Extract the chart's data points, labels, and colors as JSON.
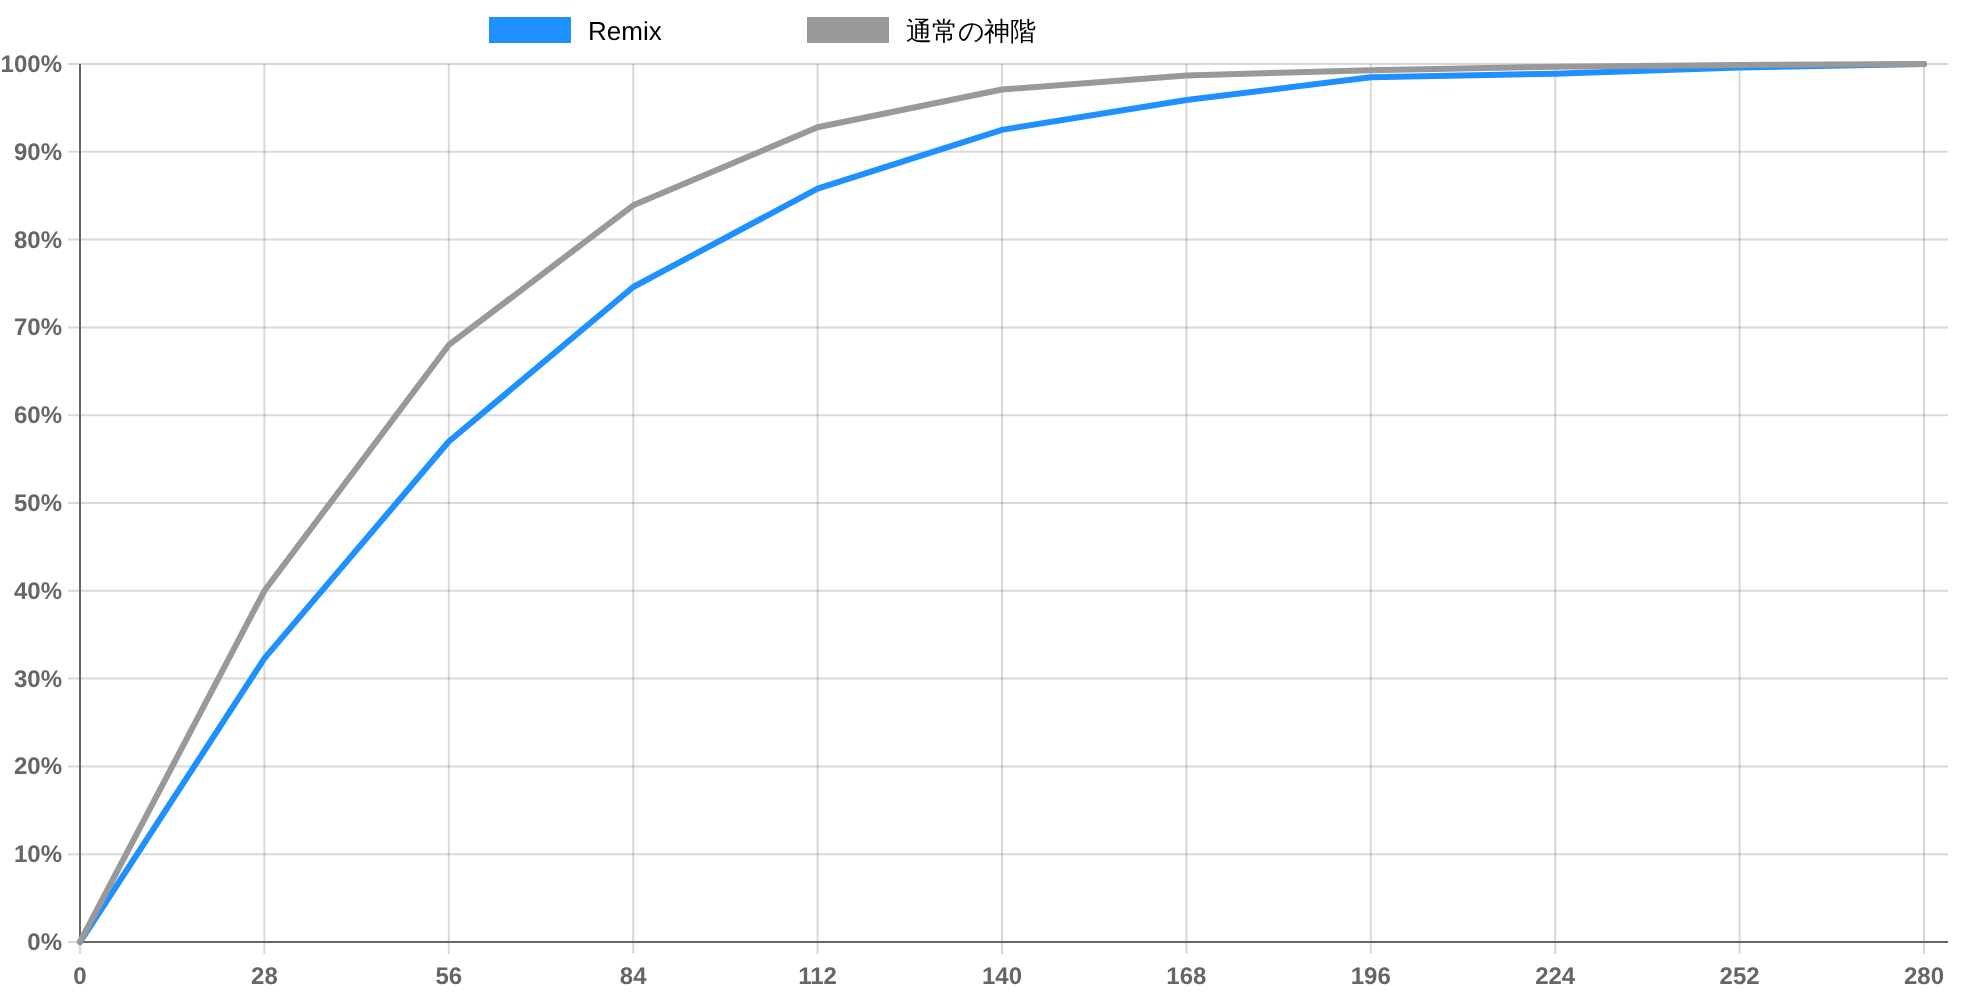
{
  "chart_data": {
    "type": "line",
    "x": [
      0,
      28,
      56,
      84,
      112,
      140,
      168,
      196,
      224,
      252,
      280
    ],
    "series": [
      {
        "name": "Remix",
        "color": "#1e90ff",
        "values": [
          0,
          32.3,
          57,
          74.6,
          85.8,
          92.5,
          95.9,
          98.5,
          98.9,
          99.6,
          100
        ]
      },
      {
        "name": "通常の神階",
        "color": "#999999",
        "values": [
          0,
          40,
          68,
          83.9,
          92.8,
          97.1,
          98.7,
          99.3,
          99.7,
          99.9,
          100
        ]
      }
    ],
    "xlim": [
      0,
      280
    ],
    "xticks": [
      0,
      28,
      56,
      84,
      112,
      140,
      168,
      196,
      224,
      252,
      280
    ],
    "ylim": [
      0,
      100
    ],
    "yticks": [
      {
        "value": 0,
        "label": "0%"
      },
      {
        "value": 10,
        "label": "10%"
      },
      {
        "value": 20,
        "label": "20%"
      },
      {
        "value": 30,
        "label": "30%"
      },
      {
        "value": 40,
        "label": "40%"
      },
      {
        "value": 50,
        "label": "50%"
      },
      {
        "value": 60,
        "label": "60%"
      },
      {
        "value": 70,
        "label": "70%"
      },
      {
        "value": 80,
        "label": "80%"
      },
      {
        "value": 90,
        "label": "90%"
      },
      {
        "value": 100,
        "label": "100%"
      }
    ],
    "grid": true,
    "legend": "top",
    "marker": "none",
    "line_style": "solid"
  }
}
